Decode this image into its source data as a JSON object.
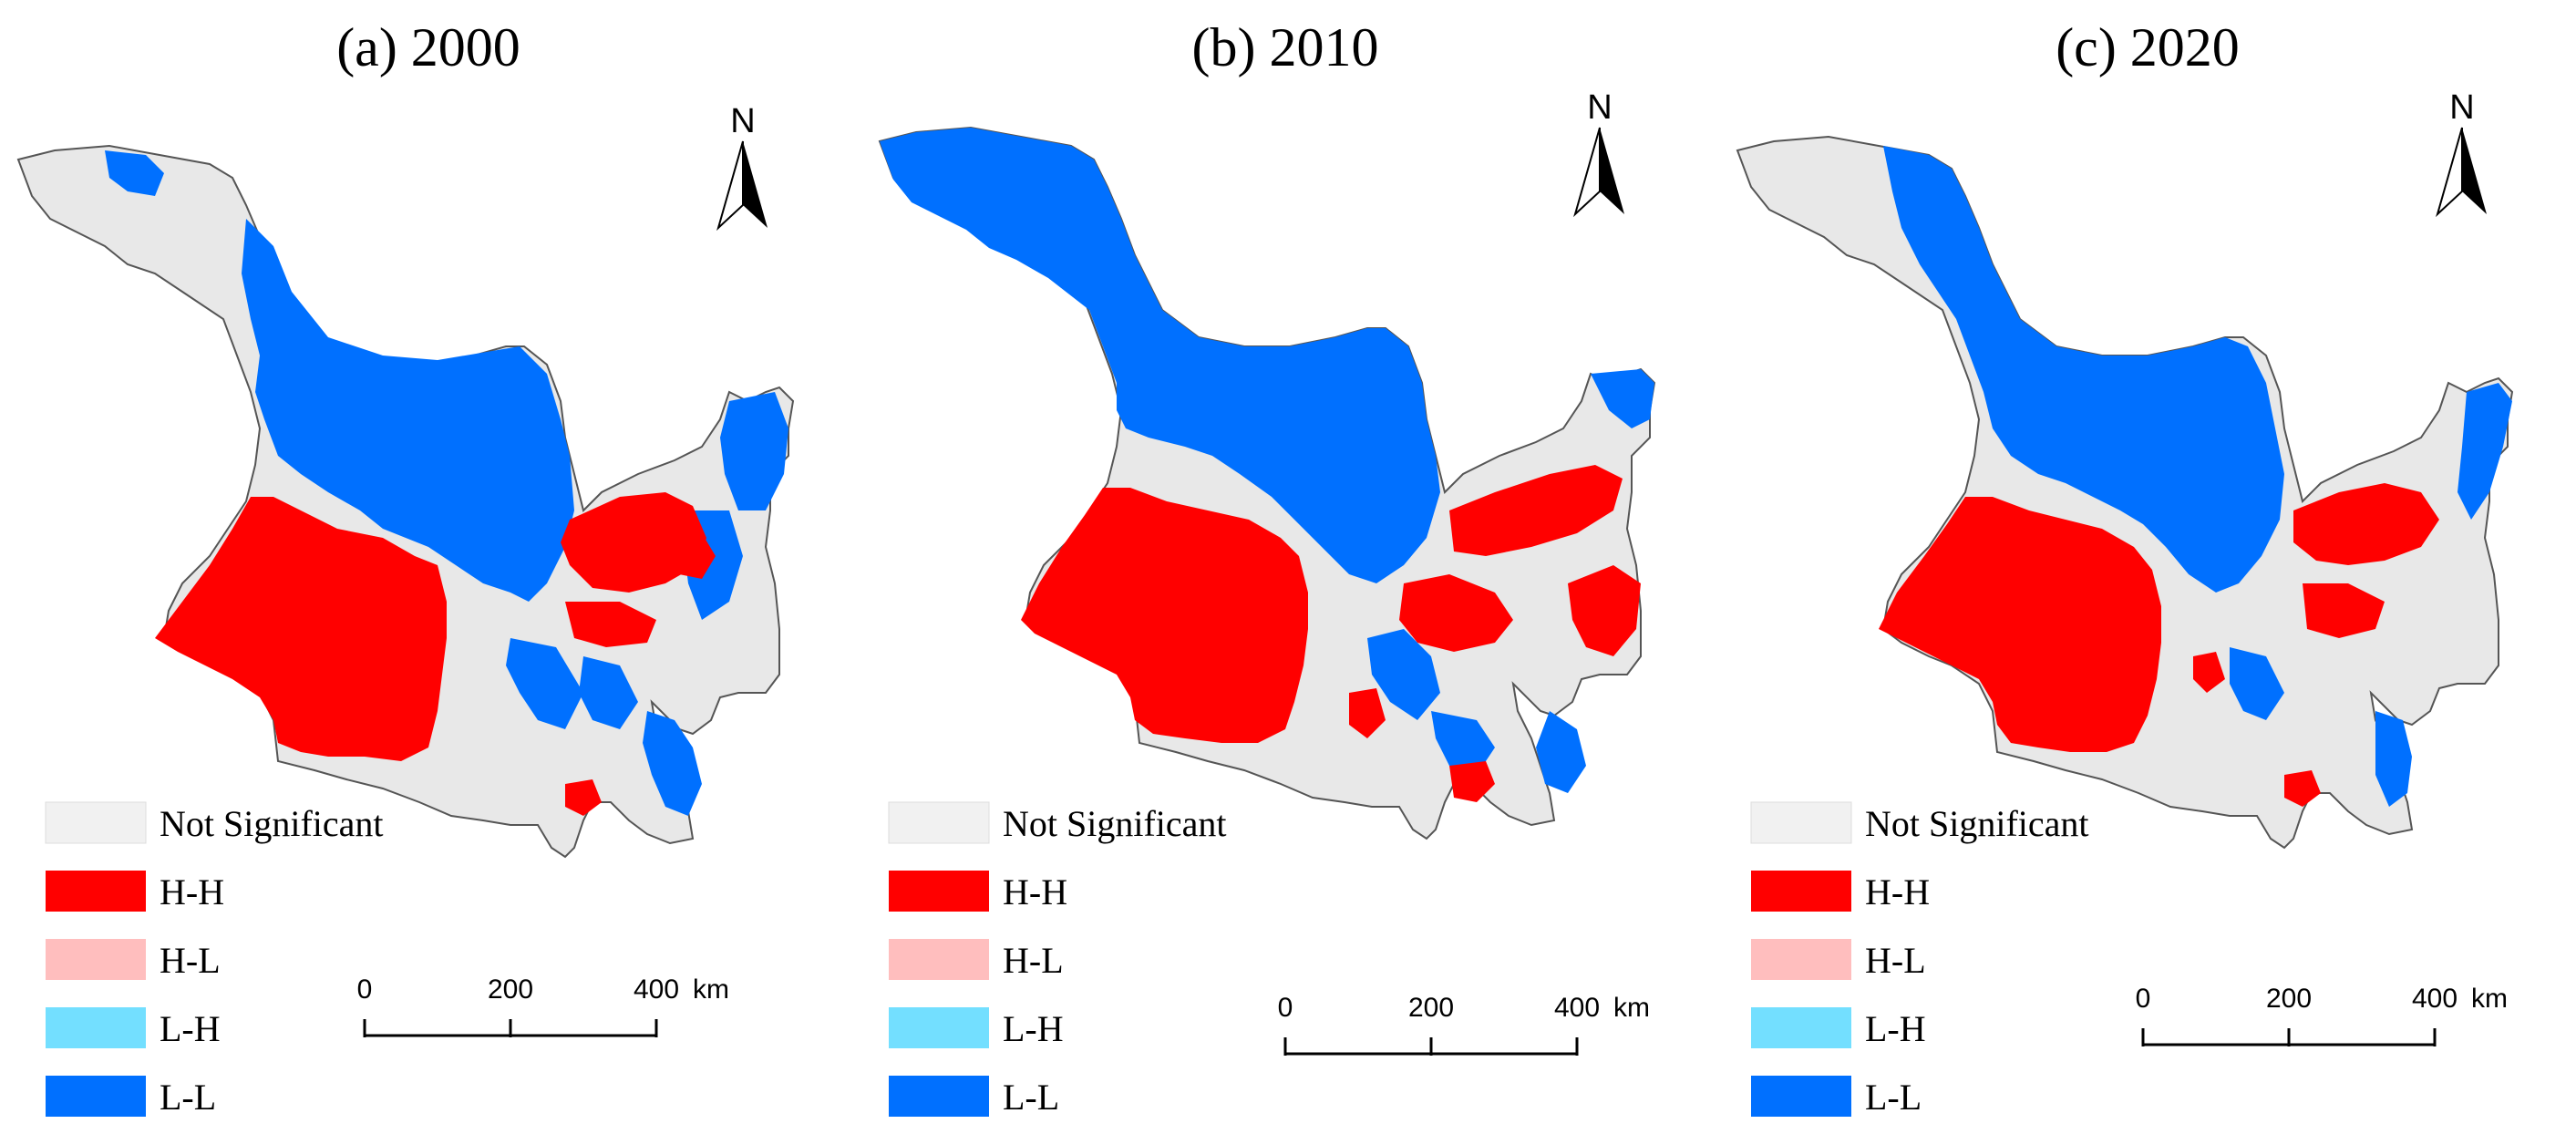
{
  "panels": [
    {
      "id": "a",
      "title": "(a) 2000"
    },
    {
      "id": "b",
      "title": "(b) 2010"
    },
    {
      "id": "c",
      "title": "(c) 2020"
    }
  ],
  "north_arrow": {
    "label": "N",
    "icon": "north-arrow-icon"
  },
  "scale_bar": {
    "ticks": [
      "0",
      "200",
      "400"
    ],
    "unit": "km"
  },
  "legend": {
    "items": [
      {
        "label": "Not Significant",
        "color": "#f1f1f1"
      },
      {
        "label": "H-H",
        "color": "#ff0000"
      },
      {
        "label": "H-L",
        "color": "#ffbebe"
      },
      {
        "label": "L-H",
        "color": "#73dfff"
      },
      {
        "label": "L-L",
        "color": "#0070ff"
      }
    ]
  },
  "colors": {
    "not_significant": "#e8e8e8",
    "hh": "#ff0000",
    "hl": "#ffbebe",
    "lh": "#73dfff",
    "ll": "#0070ff",
    "outline": "#555555"
  }
}
